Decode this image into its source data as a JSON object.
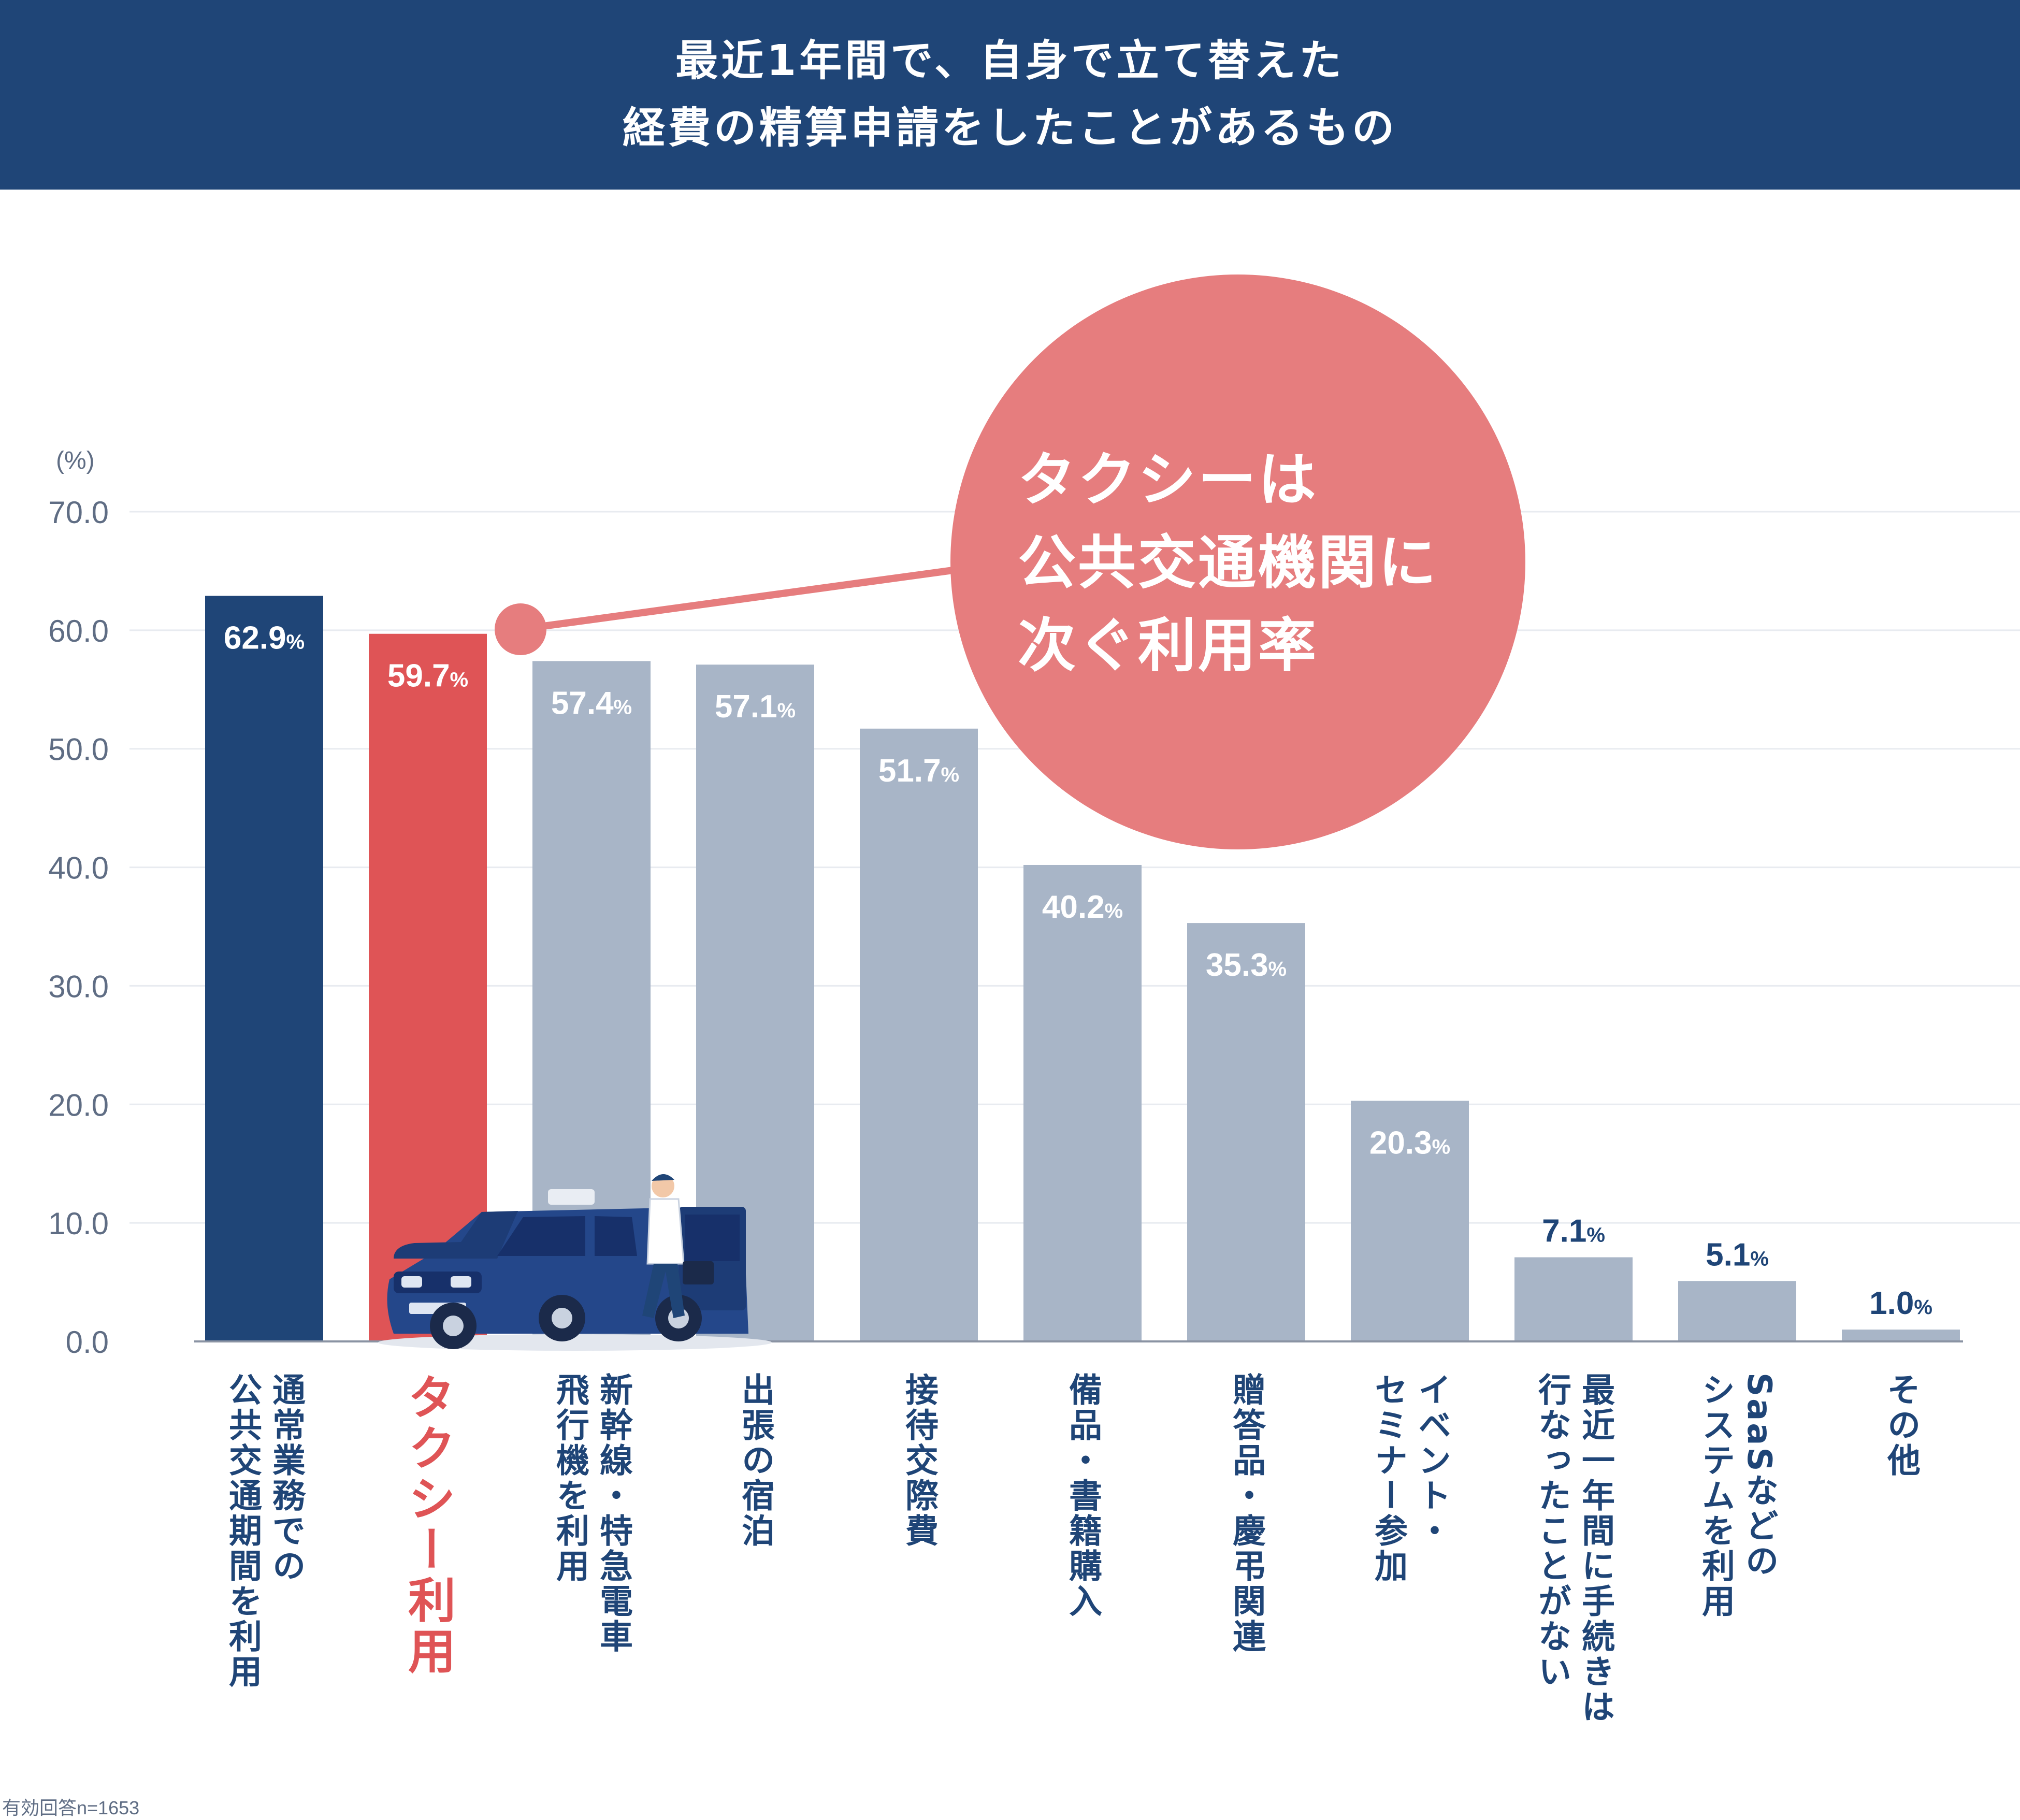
{
  "header": {
    "title_line1": "最近1年間で、自身で立て替えた",
    "title_line2": "経費の精算申請をしたことがあるもの"
  },
  "chart_data": {
    "type": "bar",
    "title": "最近1年間で、自身で立て替えた経費の精算申請をしたことがあるもの",
    "ylabel": "(%)",
    "ylim": [
      0,
      70
    ],
    "yticks": [
      "0.0",
      "10.0",
      "20.0",
      "30.0",
      "40.0",
      "50.0",
      "60.0",
      "70.0"
    ],
    "grid": true,
    "categories": [
      [
        "通常業務での",
        "公共交通期間を利用"
      ],
      [
        "タクシー利用"
      ],
      [
        "新幹線・特急電車",
        "飛行機を利用"
      ],
      [
        "出張の宿泊"
      ],
      [
        "接待交際費"
      ],
      [
        "備品・書籍購入"
      ],
      [
        "贈答品・慶弔関連"
      ],
      [
        "イベント・",
        "セミナー参加"
      ],
      [
        "最近一年間に手続きは",
        "行なったことがない"
      ],
      [
        "SaaSなどの",
        "システムを利用"
      ],
      [
        "その他"
      ]
    ],
    "values": [
      62.9,
      59.7,
      57.4,
      57.1,
      51.7,
      40.2,
      35.3,
      20.3,
      7.1,
      5.1,
      1.0
    ],
    "value_labels": [
      "62.9",
      "59.7",
      "57.4",
      "57.1",
      "51.7",
      "40.2",
      "35.3",
      "20.3",
      "7.1",
      "5.1",
      "1.0"
    ],
    "unit": "%",
    "bar_colors": [
      "#1f4577",
      "#df5456",
      "#a8b5c7",
      "#a8b5c7",
      "#a8b5c7",
      "#a8b5c7",
      "#a8b5c7",
      "#a8b5c7",
      "#a8b5c7",
      "#a8b5c7",
      "#a8b5c7"
    ],
    "label_colors": [
      "#1f4577",
      "#df5456",
      "#1f4577",
      "#1f4577",
      "#1f4577",
      "#1f4577",
      "#1f4577",
      "#1f4577",
      "#1f4577",
      "#1f4577",
      "#1f4577"
    ],
    "annotation": {
      "lines": [
        "タクシーは",
        "公共交通機関に",
        "次ぐ利用率"
      ],
      "target_index": 1,
      "color": "#e67d7e"
    },
    "footnote": "有効回答n=1653"
  },
  "colors": {
    "header_bg": "#1f4577",
    "axis_text": "#5f6d84",
    "grid": "#e8ebf0",
    "axis": "#8a93a3"
  },
  "icons": {
    "illustration": "taxi-businessman-icon"
  }
}
